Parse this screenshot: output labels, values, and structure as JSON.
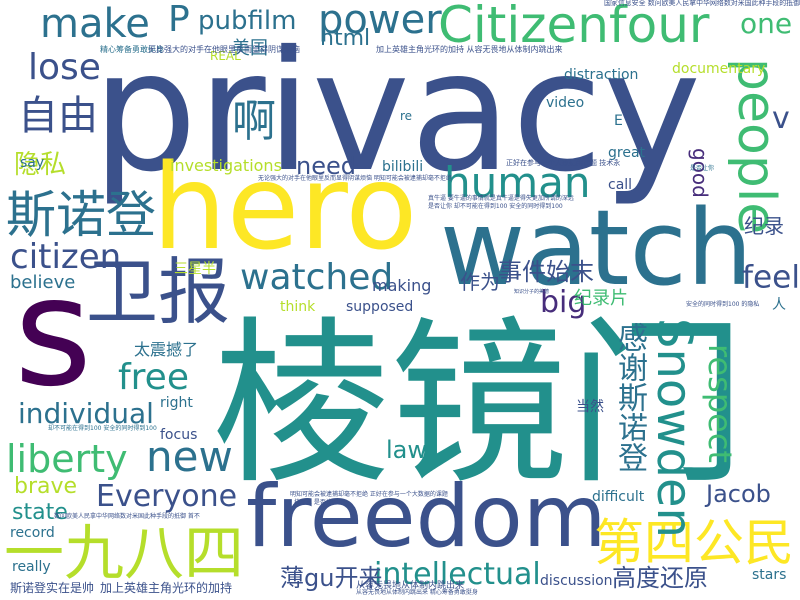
{
  "palette": {
    "navy": "#3b518b",
    "slate": "#2c718e",
    "teal": "#22908c",
    "green": "#3fbc73",
    "lime": "#b5de2b",
    "yellow": "#fde725",
    "purple": "#440154",
    "indigo": "#472d7b"
  },
  "words": [
    {
      "text": "privacy",
      "color": "#3b518b"
    },
    {
      "text": "棱镜门",
      "color": "#22908c"
    },
    {
      "text": "hero",
      "color": "#fde725"
    },
    {
      "text": "watch",
      "color": "#2c718e"
    },
    {
      "text": "freedom",
      "color": "#3b518b"
    },
    {
      "text": "s",
      "color": "#440154"
    },
    {
      "text": "Citizenfour",
      "color": "#3fbc73"
    },
    {
      "text": "一九八四",
      "color": "#b5de2b"
    },
    {
      "text": "第四公民",
      "color": "#fde725"
    },
    {
      "text": "people",
      "color": "#3fbc73"
    },
    {
      "text": "卫报",
      "color": "#3b518b"
    },
    {
      "text": "斯诺登",
      "color": "#2c718e"
    },
    {
      "text": "human",
      "color": "#22908c"
    },
    {
      "text": "Snowden",
      "color": "#22908c"
    },
    {
      "text": "make",
      "color": "#2c718e"
    },
    {
      "text": "power",
      "color": "#2c718e"
    },
    {
      "text": "lose",
      "color": "#3b518b"
    },
    {
      "text": "自由",
      "color": "#3b518b"
    },
    {
      "text": "啊",
      "color": "#2c718e"
    },
    {
      "text": "watched",
      "color": "#2c718e"
    },
    {
      "text": "free",
      "color": "#22908c"
    },
    {
      "text": "liberty",
      "color": "#3fbc73"
    },
    {
      "text": "new",
      "color": "#2c718e"
    },
    {
      "text": "citizen",
      "color": "#3b518b"
    },
    {
      "text": "feel",
      "color": "#3b518b"
    },
    {
      "text": "Everyone",
      "color": "#3b518b"
    },
    {
      "text": "intellectual",
      "color": "#22908c"
    },
    {
      "text": "individual",
      "color": "#2c718e"
    },
    {
      "text": "感谢斯诺登",
      "color": "#2c718e"
    },
    {
      "text": "respect",
      "color": "#3fbc73"
    },
    {
      "text": "高度还原",
      "color": "#3b518b"
    },
    {
      "text": "事件始末",
      "color": "#3b518b"
    },
    {
      "text": "薄gu开来",
      "color": "#3b518b"
    },
    {
      "text": "隐私",
      "color": "#b5de2b"
    },
    {
      "text": "big",
      "color": "#472d7b"
    },
    {
      "text": "P",
      "color": "#2c718e"
    },
    {
      "text": "pubfilm",
      "color": "#2c718e"
    },
    {
      "text": "one",
      "color": "#3fbc73"
    },
    {
      "text": "v",
      "color": "#3b518b"
    },
    {
      "text": "need",
      "color": "#3b518b"
    },
    {
      "text": "good",
      "color": "#472d7b"
    },
    {
      "text": "纪录",
      "color": "#3b518b"
    },
    {
      "text": "Jacob",
      "color": "#3b518b"
    },
    {
      "text": "state",
      "color": "#22908c"
    },
    {
      "text": "brave",
      "color": "#b5de2b"
    },
    {
      "text": "law",
      "color": "#22908c"
    },
    {
      "text": "html",
      "color": "#2c718e"
    },
    {
      "text": "作为",
      "color": "#3b518b"
    },
    {
      "text": "纪录片",
      "color": "#3fbc73"
    },
    {
      "text": "太震撼了",
      "color": "#2c718e"
    },
    {
      "text": "美国",
      "color": "#2c718e"
    },
    {
      "text": "believe",
      "color": "#2c718e"
    },
    {
      "text": "documentary",
      "color": "#b5de2b"
    },
    {
      "text": "distraction",
      "color": "#2c718e"
    },
    {
      "text": "investigations",
      "color": "#b5de2b"
    },
    {
      "text": "bilibili",
      "color": "#2c718e"
    },
    {
      "text": "video",
      "color": "#2c718e"
    },
    {
      "text": "making",
      "color": "#3b518b"
    },
    {
      "text": "great",
      "color": "#2c718e"
    },
    {
      "text": "call",
      "color": "#3b518b"
    },
    {
      "text": "say",
      "color": "#2c718e"
    },
    {
      "text": "think",
      "color": "#b5de2b"
    },
    {
      "text": "supposed",
      "color": "#3b518b"
    },
    {
      "text": "right",
      "color": "#2c718e"
    },
    {
      "text": "focus",
      "color": "#3b518b"
    },
    {
      "text": "当然",
      "color": "#3b518b"
    },
    {
      "text": "difficult",
      "color": "#2c718e"
    },
    {
      "text": "discussion",
      "color": "#3b518b"
    },
    {
      "text": "record",
      "color": "#2c718e"
    },
    {
      "text": "really",
      "color": "#2c718e"
    },
    {
      "text": "stars",
      "color": "#2c718e"
    },
    {
      "text": "三星半",
      "color": "#b5de2b"
    },
    {
      "text": "REAL",
      "color": "#b5de2b"
    },
    {
      "text": "re",
      "color": "#2c718e"
    },
    {
      "text": "E",
      "color": "#2c718e"
    },
    {
      "text": "人",
      "color": "#2c718e"
    },
    {
      "text": "斯诺登实在是帅",
      "color": "#3b518b"
    },
    {
      "text": "加上英雄主角光环的加持",
      "color": "#3b518b"
    },
    {
      "text": "从容无畏地从体制内跳出来",
      "color": "#3b518b"
    },
    {
      "text": "精心筹备勇敢挺身",
      "color": "#2c718e"
    },
    {
      "text": "无比强大的对手在他眼里反而显得阴谋烦恼",
      "color": "#3b518b"
    },
    {
      "text": "加上英雄主角光环的加持 从容无畏地从体制内跳出来",
      "color": "#3b518b"
    },
    {
      "text": "国家信息安全 数问欧美人民拿中华网络数对米国此种手段的抵御",
      "color": "#3b518b"
    },
    {
      "text": "正好在参与一个大数据的课题 技术永",
      "color": "#3b518b"
    },
    {
      "text": "无论强大的对手在他眼里反而显得阴谋烦恼 明知可能会被逮捕却毫不拒绝",
      "color": "#3b518b"
    },
    {
      "text": "真牛逼 要牛逼的事情就是真牛逼是得失更加所谓的深远",
      "color": "#3b518b"
    },
    {
      "text": "是否让你 却不可能在得到100 安全的同时得到100",
      "color": "#3b518b"
    },
    {
      "text": "却不可能在得到100 安全的同时得到100",
      "color": "#2c718e"
    },
    {
      "text": "明知可能会被逮捕却毫不拒绝 正好在参与一个大数据的课题",
      "color": "#3b518b"
    },
    {
      "text": "数问欧美人民拿中华网络数对米国此种手段的抵御 首不",
      "color": "#3b518b"
    },
    {
      "text": "安全的同时得到100 的隐私",
      "color": "#3b518b"
    },
    {
      "text": "从容无畏地从体制内跳出来 精心筹备勇敢挺身",
      "color": "#3b518b"
    },
    {
      "text": "技术永 是否让你",
      "color": "#3b518b"
    },
    {
      "text": "知识分子的美德",
      "color": "#3b518b"
    },
    {
      "text": "是否让你",
      "color": "#2c718e"
    }
  ]
}
